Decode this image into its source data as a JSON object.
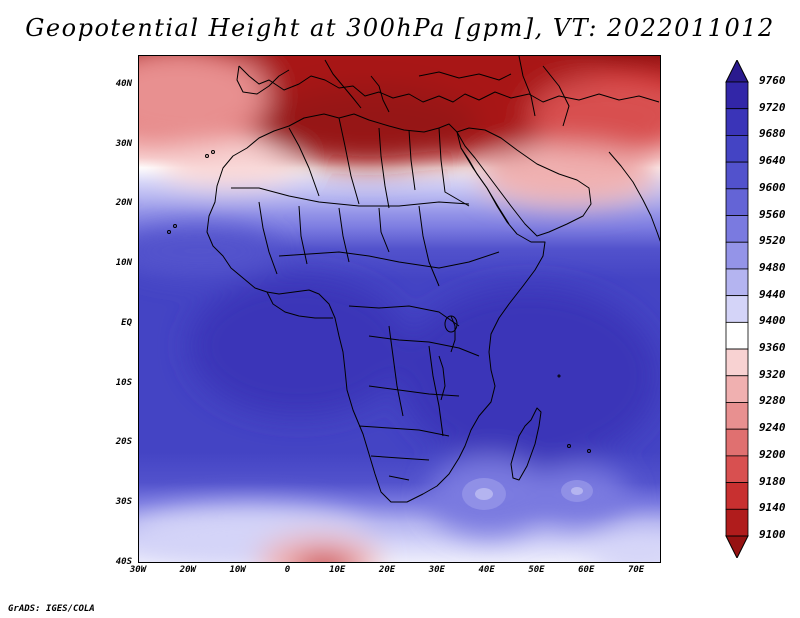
{
  "title": "Geopotential Height at 300hPa [gpm], VT: 2022011012",
  "credit": "GrADS: IGES/COLA",
  "map": {
    "lon_range": [
      -30,
      75
    ],
    "lat_range": [
      -40,
      45
    ],
    "lat_labels": [
      {
        "lat": 40,
        "text": "40N"
      },
      {
        "lat": 30,
        "text": "30N"
      },
      {
        "lat": 20,
        "text": "20N"
      },
      {
        "lat": 10,
        "text": "10N"
      },
      {
        "lat": 0,
        "text": "EQ"
      },
      {
        "lat": -10,
        "text": "10S"
      },
      {
        "lat": -20,
        "text": "20S"
      },
      {
        "lat": -30,
        "text": "30S"
      },
      {
        "lat": -40,
        "text": "40S"
      }
    ],
    "lon_labels": [
      {
        "lon": -30,
        "text": "30W"
      },
      {
        "lon": -20,
        "text": "20W"
      },
      {
        "lon": -10,
        "text": "10W"
      },
      {
        "lon": 0,
        "text": "0"
      },
      {
        "lon": 10,
        "text": "10E"
      },
      {
        "lon": 20,
        "text": "20E"
      },
      {
        "lon": 30,
        "text": "30E"
      },
      {
        "lon": 40,
        "text": "40E"
      },
      {
        "lon": 50,
        "text": "50E"
      },
      {
        "lon": 60,
        "text": "60E"
      },
      {
        "lon": 70,
        "text": "70E"
      }
    ]
  },
  "colorbar": {
    "levels": [
      9760,
      9720,
      9680,
      9640,
      9600,
      9560,
      9520,
      9480,
      9440,
      9400,
      9360,
      9320,
      9280,
      9240,
      9200,
      9180,
      9140,
      9100
    ],
    "colors_top_to_bottom": [
      "#2a1a8e",
      "#3226a8",
      "#3a34b8",
      "#4444c4",
      "#5252cc",
      "#6464d6",
      "#7a7ae0",
      "#9494e8",
      "#b4b4f0",
      "#d4d4f8",
      "#ffffff",
      "#f8d2d2",
      "#f0b0b0",
      "#e89090",
      "#e07070",
      "#d85050",
      "#c83030",
      "#b01c1c",
      "#961212"
    ]
  }
}
